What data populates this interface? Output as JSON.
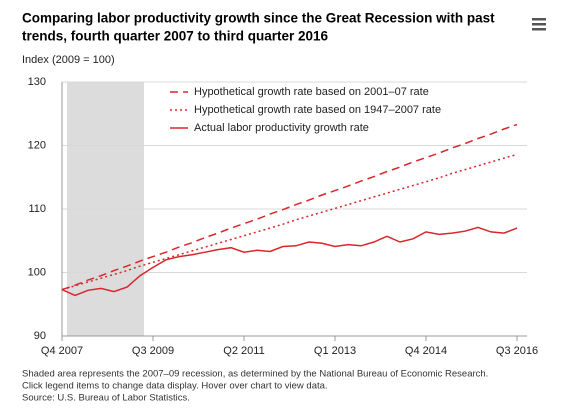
{
  "chart_data": {
    "type": "line",
    "title_lines": [
      "Comparing labor productivity growth since the Great Recession with past",
      "trends, fourth quarter 2007 to third quarter 2016"
    ],
    "y_label": "Index (2009 = 100)",
    "notes": [
      "Shaded area represents the 2007–09 recession, as determined by the National Bureau of Economic Research.",
      "Click legend items to change data display. Hover over chart to view data.",
      "Source: U.S. Bureau of Labor Statistics."
    ],
    "categories": [
      "Q4 2007",
      null,
      null,
      null,
      null,
      null,
      null,
      "Q3 2009",
      null,
      null,
      null,
      null,
      null,
      null,
      "Q2 2011",
      null,
      null,
      null,
      null,
      null,
      null,
      "Q1 2013",
      null,
      null,
      null,
      null,
      null,
      null,
      "Q4 2014",
      null,
      null,
      null,
      null,
      null,
      null,
      "Q3 2016"
    ],
    "series": [
      {
        "name": "Hypothetical growth rate based on 2001–07 rate",
        "color": "#d9262b",
        "dash": "dashed",
        "values": [
          97.3,
          98.0,
          98.8,
          99.5,
          100.3,
          101.0,
          101.8,
          102.5,
          103.2,
          104.0,
          104.7,
          105.5,
          106.2,
          107.0,
          107.7,
          108.4,
          109.2,
          109.9,
          110.7,
          111.4,
          112.2,
          112.9,
          113.6,
          114.4,
          115.1,
          115.9,
          116.6,
          117.4,
          118.1,
          118.8,
          119.6,
          120.3,
          121.1,
          121.8,
          122.6,
          123.3
        ]
      },
      {
        "name": "Hypothetical growth rate based on 1947–2007 rate",
        "color": "#d9262b",
        "dash": "dotted",
        "values": [
          97.3,
          97.9,
          98.5,
          99.1,
          99.7,
          100.3,
          101.0,
          101.6,
          102.2,
          102.8,
          103.4,
          104.0,
          104.6,
          105.2,
          105.8,
          106.4,
          107.0,
          107.6,
          108.3,
          108.9,
          109.5,
          110.1,
          110.7,
          111.3,
          111.9,
          112.5,
          113.1,
          113.7,
          114.3,
          114.9,
          115.6,
          116.2,
          116.8,
          117.4,
          118.0,
          118.6
        ]
      },
      {
        "name": "Actual labor productivity growth rate",
        "color": "#d9262b",
        "dash": "solid",
        "values": [
          97.3,
          96.4,
          97.2,
          97.5,
          97.0,
          97.7,
          99.5,
          100.8,
          102.0,
          102.5,
          102.8,
          103.2,
          103.6,
          103.9,
          103.2,
          103.5,
          103.3,
          104.1,
          104.2,
          104.8,
          104.6,
          104.1,
          104.4,
          104.2,
          104.8,
          105.7,
          104.8,
          105.3,
          106.4,
          106.0,
          106.2,
          106.5,
          107.1,
          106.4,
          106.2,
          107.0
        ]
      }
    ],
    "ylim": [
      90,
      130
    ],
    "yticks": [
      90,
      100,
      110,
      120,
      130
    ],
    "grid": true
  }
}
